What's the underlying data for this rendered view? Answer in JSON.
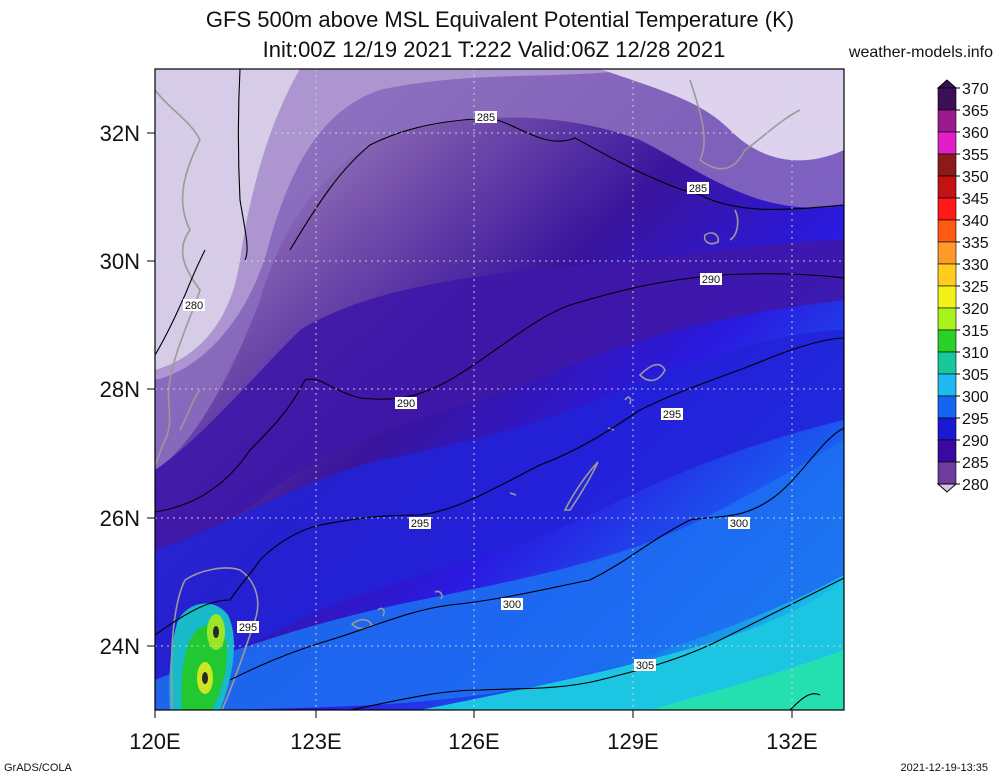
{
  "header": {
    "title": "GFS 500m above MSL Equivalent Potential Temperature (K)",
    "subtitle": "Init:00Z 12/19 2021 T:222 Valid:06Z 12/28 2021",
    "site": "weather-models.info"
  },
  "footer": {
    "left": "GrADS/COLA",
    "right": "2021-12-19-13:35"
  },
  "map": {
    "lon_range": [
      120,
      133.3
    ],
    "lat_range": [
      23,
      33
    ],
    "x_ticks": [
      "120E",
      "123E",
      "126E",
      "129E",
      "132E"
    ],
    "y_ticks": [
      "32N",
      "30N",
      "28N",
      "26N",
      "24N"
    ],
    "contour_labels": [
      "285",
      "285",
      "280",
      "290",
      "290",
      "295",
      "295",
      "295",
      "300",
      "300",
      "305"
    ]
  },
  "colorbar": {
    "labels": [
      "370",
      "365",
      "360",
      "355",
      "350",
      "345",
      "340",
      "335",
      "330",
      "325",
      "320",
      "315",
      "310",
      "305",
      "300",
      "295",
      "290",
      "285",
      "280"
    ],
    "colors": [
      "#3c0f58",
      "#9b1a8d",
      "#e01fc9",
      "#8c1a1a",
      "#c21212",
      "#ff1a1a",
      "#ff5a14",
      "#ff9a28",
      "#ffcc1f",
      "#f2f21a",
      "#a9f21a",
      "#28d228",
      "#18c89b",
      "#1fb9f2",
      "#1466f2",
      "#1a1ad2",
      "#3a0aa0",
      "#6c3d9c",
      "#d2c8e6"
    ]
  }
}
